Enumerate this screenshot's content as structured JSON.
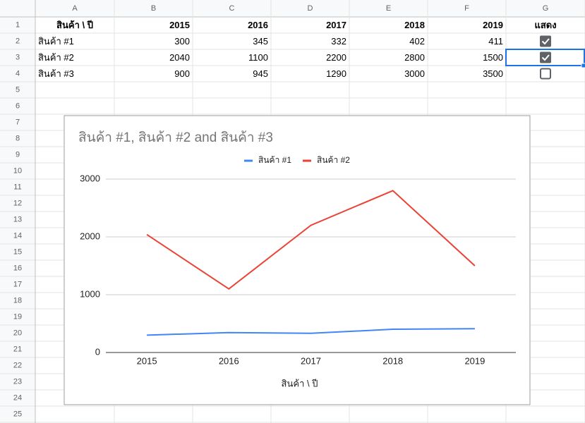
{
  "sheet": {
    "columns": [
      "A",
      "B",
      "C",
      "D",
      "E",
      "F",
      "G"
    ],
    "row_numbers": [
      1,
      2,
      3,
      4,
      5,
      6,
      7,
      8,
      9,
      10,
      11,
      12,
      13,
      14,
      15,
      16,
      17,
      18,
      19,
      20,
      21,
      22,
      23,
      24,
      25
    ],
    "header": [
      "สินค้า \\ ปี",
      "2015",
      "2016",
      "2017",
      "2018",
      "2019",
      "แสดง"
    ],
    "rows": [
      {
        "name": "สินค้า #1",
        "values": [
          300,
          345,
          332,
          402,
          411
        ],
        "show": true
      },
      {
        "name": "สินค้า #2",
        "values": [
          2040,
          1100,
          2200,
          2800,
          1500
        ],
        "show": true
      },
      {
        "name": "สินค้า #3",
        "values": [
          900,
          945,
          1290,
          3000,
          3500
        ],
        "show": false
      }
    ],
    "selected_cell": "G3"
  },
  "chart_data": {
    "type": "line",
    "title": "สินค้า #1, สินค้า #2 and สินค้า #3",
    "categories": [
      "2015",
      "2016",
      "2017",
      "2018",
      "2019"
    ],
    "x_label": "สินค้า \\ ปี",
    "series": [
      {
        "name": "สินค้า #1",
        "color": "#4285f4",
        "values": [
          300,
          345,
          332,
          402,
          411
        ]
      },
      {
        "name": "สินค้า #2",
        "color": "#ea4335",
        "values": [
          2040,
          1100,
          2200,
          2800,
          1500
        ]
      }
    ],
    "ylim": [
      0,
      3000
    ],
    "yticks": [
      0,
      1000,
      2000,
      3000
    ],
    "grid": true,
    "legend": "top"
  }
}
